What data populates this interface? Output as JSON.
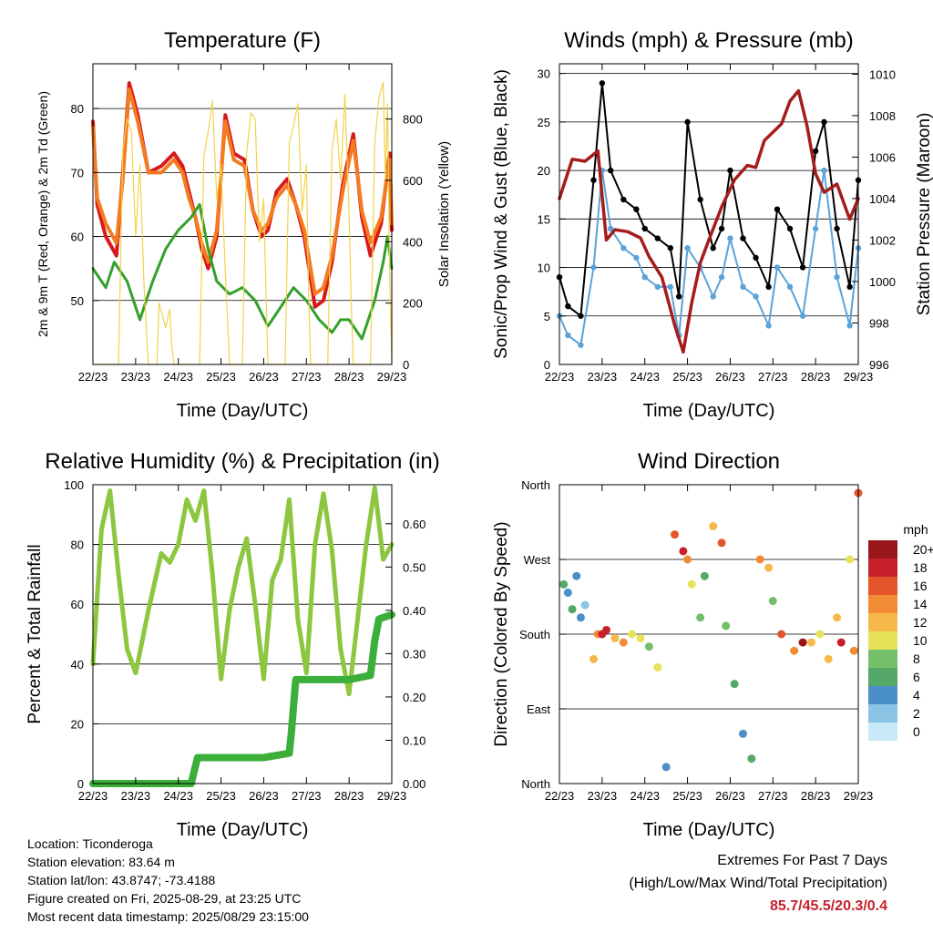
{
  "panels": {
    "temperature": {
      "title": "Temperature (F)",
      "xlabel": "Time (Day/UTC)",
      "ylabel_left": "2m & 9m T (Red, Orange) & 2m Td (Green)",
      "ylabel_right": "Solar Insolation (Yellow)"
    },
    "winds": {
      "title": "Winds (mph) & Pressure (mb)",
      "xlabel": "Time (Day/UTC)",
      "ylabel_left": "Sonic/Prop Wind & Gust (Blue, Black)",
      "ylabel_right": "Station Pressure (Maroon)"
    },
    "humidity": {
      "title": "Relative Humidity (%) & Precipitation (in)",
      "xlabel": "Time (Day/UTC)",
      "ylabel_left": "Percent & Total Rainfall"
    },
    "direction": {
      "title": "Wind Direction",
      "xlabel": "Time (Day/UTC)",
      "ylabel_left": "Direction (Colored By Speed)",
      "legend_unit": "mph"
    }
  },
  "info": {
    "location": "Location: Ticonderoga",
    "elevation": "Station elevation: 83.64 m",
    "latlon": "Station lat/lon: 43.8747; -73.4188",
    "created": "Figure created on Fri, 2025-08-29, at 23:25 UTC",
    "recent": "Most recent data timestamp: 2025/08/29 23:15:00"
  },
  "extremes": {
    "line1": "Extremes For Past 7 Days",
    "line2": "(High/Low/Max Wind/Total Precipitation)",
    "values": "85.7/45.5/20.3/0.4",
    "value_color": "#c8202a"
  },
  "chart_data": [
    {
      "type": "line",
      "title": "Temperature (F)",
      "xlabel": "Time (Day/UTC)",
      "x": [
        "22/23",
        "23/23",
        "24/23",
        "25/23",
        "26/23",
        "27/23",
        "28/23",
        "29/23"
      ],
      "ylim_left": [
        40,
        87
      ],
      "yticks_left": [
        50,
        60,
        70,
        80
      ],
      "ylim_right": [
        0,
        980
      ],
      "yticks_right": [
        0,
        200,
        400,
        600,
        800
      ],
      "series": [
        {
          "name": "2m T",
          "color": "#d7191c",
          "axis": "left",
          "x": [
            0,
            0.1,
            0.3,
            0.55,
            0.7,
            0.85,
            1.05,
            1.3,
            1.6,
            1.9,
            2.1,
            2.25,
            2.4,
            2.55,
            2.7,
            2.9,
            3.1,
            3.3,
            3.55,
            3.75,
            3.95,
            4.1,
            4.3,
            4.55,
            4.75,
            4.95,
            5.2,
            5.4,
            5.6,
            5.85,
            6.1,
            6.3,
            6.5,
            6.75,
            6.95,
            7.0
          ],
          "y": [
            78,
            65,
            60,
            57,
            70,
            84,
            79,
            70,
            71,
            73,
            71,
            67,
            63,
            58,
            55,
            60,
            79,
            73,
            72,
            64,
            60,
            61,
            67,
            69,
            65,
            60,
            49,
            50,
            56,
            68,
            76,
            63,
            57,
            62,
            73,
            61
          ]
        },
        {
          "name": "9m T",
          "color": "#f47b20",
          "axis": "left",
          "x": [
            0,
            0.1,
            0.3,
            0.55,
            0.7,
            0.85,
            1.05,
            1.3,
            1.6,
            1.9,
            2.1,
            2.25,
            2.4,
            2.55,
            2.7,
            2.9,
            3.1,
            3.3,
            3.55,
            3.75,
            3.95,
            4.1,
            4.3,
            4.55,
            4.75,
            4.95,
            5.2,
            5.4,
            5.6,
            5.85,
            6.1,
            6.3,
            6.5,
            6.75,
            6.95,
            7.0
          ],
          "y": [
            77,
            66,
            62,
            59,
            69,
            83,
            78,
            70,
            70,
            72,
            70,
            66,
            63,
            59,
            56,
            61,
            78,
            72,
            71,
            64,
            61,
            62,
            66,
            68,
            65,
            61,
            51,
            52,
            57,
            67,
            75,
            64,
            59,
            63,
            72,
            62
          ]
        },
        {
          "name": "2m Td",
          "color": "#33a02c",
          "axis": "left",
          "x": [
            0,
            0.3,
            0.5,
            0.8,
            1.1,
            1.4,
            1.7,
            2.0,
            2.3,
            2.5,
            2.7,
            2.9,
            3.2,
            3.5,
            3.8,
            4.1,
            4.4,
            4.7,
            5.0,
            5.3,
            5.6,
            5.8,
            6.0,
            6.3,
            6.6,
            6.8,
            6.9,
            7.0
          ],
          "y": [
            55,
            52,
            56,
            53,
            47,
            53,
            58,
            61,
            63,
            65,
            58,
            53,
            51,
            52,
            50,
            46,
            49,
            52,
            50,
            47,
            45,
            47,
            47,
            44,
            50,
            56,
            60,
            55
          ]
        },
        {
          "name": "Solar Insolation",
          "color": "#f2d24a",
          "axis": "right",
          "x": [
            0.0,
            0.05,
            0.6,
            0.7,
            0.8,
            0.9,
            1.0,
            1.1,
            1.2,
            1.3,
            1.5,
            1.55,
            1.7,
            1.8,
            1.85,
            1.9,
            2.5,
            2.6,
            2.7,
            2.8,
            2.9,
            3.0,
            3.1,
            3.2,
            3.35,
            3.5,
            3.6,
            3.7,
            3.8,
            3.9,
            4.0,
            4.05,
            4.1,
            4.5,
            4.6,
            4.7,
            4.8,
            4.9,
            5.0,
            5.05,
            5.1,
            5.5,
            5.6,
            5.7,
            5.8,
            5.9,
            6.0,
            6.05,
            6.1,
            6.5,
            6.6,
            6.7,
            6.8,
            6.85,
            6.9,
            6.95,
            7.0
          ],
          "y": [
            0,
            0,
            0,
            700,
            800,
            760,
            420,
            650,
            250,
            0,
            0,
            200,
            120,
            180,
            60,
            0,
            0,
            680,
            760,
            860,
            540,
            650,
            300,
            0,
            0,
            0,
            690,
            820,
            800,
            400,
            540,
            250,
            0,
            0,
            720,
            780,
            850,
            500,
            650,
            250,
            0,
            0,
            700,
            800,
            600,
            880,
            500,
            200,
            0,
            0,
            720,
            870,
            920,
            600,
            850,
            300,
            0
          ]
        }
      ]
    },
    {
      "type": "scatter",
      "title": "Winds (mph) & Pressure (mb)",
      "xlabel": "Time (Day/UTC)",
      "x": [
        "22/23",
        "23/23",
        "24/23",
        "25/23",
        "26/23",
        "27/23",
        "28/23",
        "29/23"
      ],
      "ylim_left": [
        0,
        31
      ],
      "yticks_left": [
        0,
        5,
        10,
        15,
        20,
        25,
        30
      ],
      "ylim_right": [
        996,
        1010.5
      ],
      "yticks_right": [
        996,
        998,
        1000,
        1002,
        1004,
        1006,
        1008,
        1010
      ],
      "series": [
        {
          "name": "Sonic/Prop Wind",
          "color": "#5ba3d8",
          "axis": "left",
          "x": [
            0,
            0.2,
            0.5,
            0.8,
            1.0,
            1.2,
            1.5,
            1.8,
            2.0,
            2.3,
            2.6,
            2.8,
            3.0,
            3.3,
            3.6,
            3.8,
            4.0,
            4.3,
            4.6,
            4.9,
            5.1,
            5.4,
            5.7,
            6.0,
            6.2,
            6.5,
            6.8,
            7.0
          ],
          "y": [
            5,
            3,
            2,
            10,
            20,
            14,
            12,
            11,
            9,
            8,
            8,
            3,
            12,
            10,
            7,
            9,
            13,
            8,
            7,
            4,
            10,
            8,
            5,
            14,
            20,
            9,
            4,
            12
          ]
        },
        {
          "name": "Gust",
          "color": "#000000",
          "axis": "left",
          "x": [
            0,
            0.2,
            0.5,
            0.8,
            1.0,
            1.2,
            1.5,
            1.8,
            2.0,
            2.3,
            2.6,
            2.8,
            3.0,
            3.3,
            3.6,
            3.8,
            4.0,
            4.3,
            4.6,
            4.9,
            5.1,
            5.4,
            5.7,
            6.0,
            6.2,
            6.5,
            6.8,
            7.0
          ],
          "y": [
            9,
            6,
            5,
            19,
            29,
            20,
            17,
            16,
            14,
            13,
            12,
            7,
            25,
            17,
            12,
            14,
            20,
            13,
            11,
            8,
            16,
            14,
            10,
            22,
            25,
            14,
            8,
            19
          ]
        },
        {
          "name": "Station Pressure",
          "color": "#a51c1c",
          "axis": "right",
          "x": [
            0,
            0.3,
            0.6,
            0.9,
            1.1,
            1.3,
            1.6,
            1.9,
            2.1,
            2.4,
            2.7,
            2.9,
            3.1,
            3.3,
            3.5,
            3.8,
            4.1,
            4.4,
            4.6,
            4.8,
            5.0,
            5.2,
            5.4,
            5.6,
            5.8,
            6.0,
            6.2,
            6.5,
            6.8,
            7.0
          ],
          "y": [
            1004.0,
            1005.9,
            1005.8,
            1006.3,
            1002.0,
            1002.5,
            1002.4,
            1002.1,
            1001.2,
            1000.2,
            997.9,
            996.6,
            999.0,
            1000.9,
            1002.0,
            1003.6,
            1004.9,
            1005.6,
            1005.5,
            1006.8,
            1007.2,
            1007.6,
            1008.7,
            1009.2,
            1007.5,
            1005.2,
            1004.3,
            1004.7,
            1003.0,
            1004.0
          ]
        }
      ]
    },
    {
      "type": "line",
      "title": "Relative Humidity (%) & Precipitation (in)",
      "xlabel": "Time (Day/UTC)",
      "x": [
        "22/23",
        "23/23",
        "24/23",
        "25/23",
        "26/23",
        "27/23",
        "28/23",
        "29/23"
      ],
      "ylim_left": [
        0,
        100
      ],
      "yticks_left": [
        0,
        20,
        40,
        60,
        80,
        100
      ],
      "ylim_right": [
        0,
        0.69
      ],
      "yticks_right": [
        0.0,
        0.1,
        0.2,
        0.3,
        0.4,
        0.5,
        0.6
      ],
      "series": [
        {
          "name": "Relative Humidity",
          "color": "#8dc63f",
          "axis": "left",
          "x": [
            0,
            0.2,
            0.4,
            0.6,
            0.8,
            1.0,
            1.3,
            1.6,
            1.8,
            2.0,
            2.2,
            2.4,
            2.6,
            2.8,
            3.0,
            3.2,
            3.4,
            3.6,
            3.8,
            4.0,
            4.2,
            4.4,
            4.6,
            4.8,
            5.0,
            5.2,
            5.4,
            5.6,
            5.8,
            6.0,
            6.2,
            6.4,
            6.6,
            6.8,
            7.0
          ],
          "y": [
            40,
            85,
            98,
            70,
            45,
            37,
            58,
            77,
            74,
            80,
            95,
            88,
            98,
            70,
            35,
            58,
            72,
            82,
            60,
            35,
            68,
            75,
            95,
            55,
            37,
            80,
            97,
            78,
            45,
            30,
            55,
            80,
            99,
            75,
            80
          ]
        },
        {
          "name": "Total Precipitation",
          "color": "#3cae3a",
          "axis": "right",
          "x": [
            0,
            2.3,
            2.45,
            3.0,
            4.0,
            4.6,
            4.65,
            4.7,
            4.75,
            5.0,
            6.0,
            6.5,
            6.6,
            6.7,
            7.0
          ],
          "y": [
            0,
            0,
            0.06,
            0.06,
            0.06,
            0.07,
            0.12,
            0.18,
            0.24,
            0.24,
            0.24,
            0.25,
            0.33,
            0.38,
            0.39
          ]
        }
      ]
    },
    {
      "type": "scatter",
      "title": "Wind Direction",
      "xlabel": "Time (Day/UTC)",
      "x": [
        "22/23",
        "23/23",
        "24/23",
        "25/23",
        "26/23",
        "27/23",
        "28/23",
        "29/23"
      ],
      "yticks": [
        "North",
        "East",
        "South",
        "West",
        "North"
      ],
      "ylim": [
        0,
        360
      ],
      "legend_title": "mph",
      "legend_levels": [
        "0",
        "2",
        "4",
        "6",
        "8",
        "10",
        "12",
        "14",
        "16",
        "18",
        "20+"
      ],
      "legend_colors": [
        "#c7e9f8",
        "#8cc4e6",
        "#4b8fc9",
        "#55a868",
        "#74c06a",
        "#e6e35a",
        "#f7b84a",
        "#f28b35",
        "#e3562b",
        "#c8202a",
        "#99161b"
      ],
      "series": [
        {
          "name": "direction",
          "x": [
            0.1,
            0.2,
            0.3,
            0.4,
            0.5,
            0.6,
            0.8,
            0.9,
            1.0,
            1.1,
            1.3,
            1.5,
            1.7,
            1.9,
            2.1,
            2.3,
            2.5,
            2.7,
            2.9,
            3.0,
            3.1,
            3.3,
            3.4,
            3.6,
            3.8,
            3.9,
            4.1,
            4.3,
            4.5,
            4.7,
            4.9,
            5.0,
            5.2,
            5.5,
            5.7,
            5.9,
            6.1,
            6.3,
            6.5,
            6.6,
            6.8,
            6.9,
            7.0
          ],
          "y": [
            240,
            230,
            210,
            250,
            200,
            215,
            150,
            180,
            180,
            185,
            175,
            170,
            180,
            175,
            165,
            140,
            20,
            300,
            280,
            270,
            240,
            200,
            250,
            310,
            290,
            190,
            120,
            60,
            30,
            270,
            260,
            220,
            180,
            160,
            170,
            170,
            180,
            150,
            200,
            170,
            270,
            160,
            350
          ],
          "speed": [
            6,
            4,
            5,
            3,
            4,
            2,
            12,
            14,
            18,
            17,
            11,
            13,
            10,
            9,
            8,
            10,
            3,
            15,
            17,
            13,
            9,
            7,
            5,
            12,
            15,
            8,
            6,
            4,
            5,
            13,
            11,
            8,
            15,
            14,
            19,
            12,
            10,
            11,
            12,
            17,
            9,
            13,
            15
          ]
        }
      ]
    }
  ]
}
